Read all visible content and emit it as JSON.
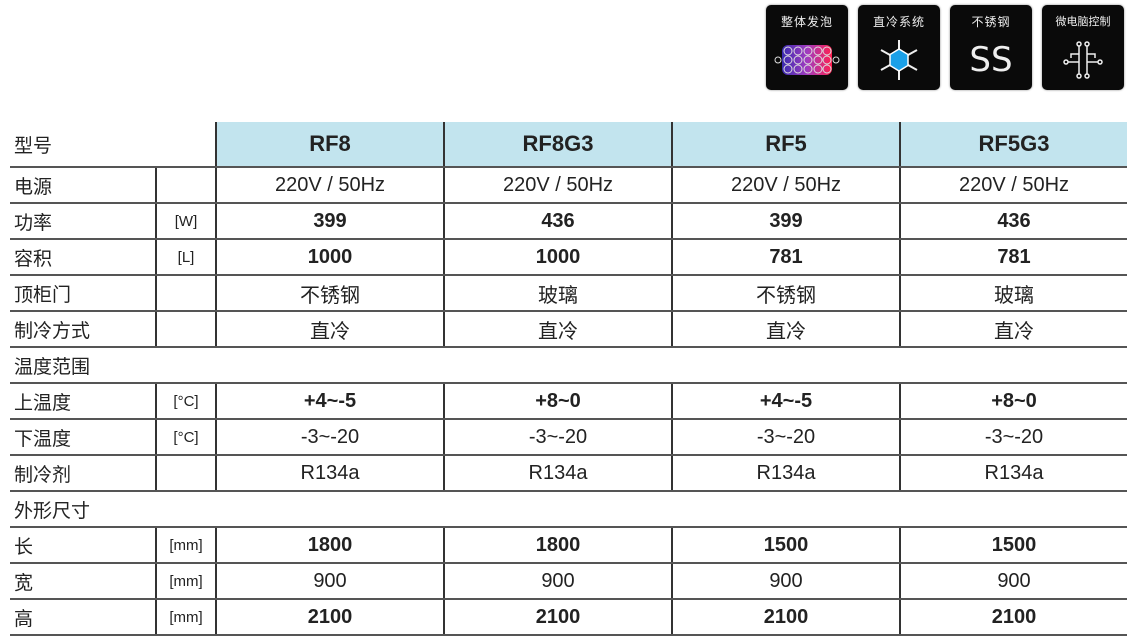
{
  "badges": [
    {
      "label": "整体发泡",
      "icon": "foam-bubbles-icon"
    },
    {
      "label": "直冷系统",
      "icon": "snowflake-icon"
    },
    {
      "label": "不锈钢",
      "icon": "stainless-steel-icon",
      "symbol": "SS"
    },
    {
      "label": "微电脑控制",
      "icon": "circuit-icon"
    }
  ],
  "table": {
    "header": {
      "label": "型号",
      "models": [
        "RF8",
        "RF8G3",
        "RF5",
        "RF5G3"
      ]
    },
    "rows": [
      {
        "label": "电源",
        "unit": "",
        "values": [
          "220V / 50Hz",
          "220V / 50Hz",
          "220V / 50Hz",
          "220V / 50Hz"
        ]
      },
      {
        "label": "功率",
        "unit": "[W]",
        "values": [
          "399",
          "436",
          "399",
          "436"
        ]
      },
      {
        "label": "容积",
        "unit": "[L]",
        "values": [
          "1000",
          "1000",
          "781",
          "781"
        ]
      },
      {
        "label": "顶柜门",
        "unit": "",
        "values": [
          "不锈钢",
          "玻璃",
          "不锈钢",
          "玻璃"
        ]
      },
      {
        "label": "制冷方式",
        "unit": "",
        "values": [
          "直冷",
          "直冷",
          "直冷",
          "直冷"
        ]
      },
      {
        "section": "温度范围"
      },
      {
        "label": "上温度",
        "unit": "[°C]",
        "values": [
          "+4~-5",
          "+8~0",
          "+4~-5",
          "+8~0"
        ]
      },
      {
        "label": "下温度",
        "unit": "[°C]",
        "values": [
          "-3~-20",
          "-3~-20",
          "-3~-20",
          "-3~-20"
        ]
      },
      {
        "label": "制冷剂",
        "unit": "",
        "values": [
          "R134a",
          "R134a",
          "R134a",
          "R134a"
        ]
      },
      {
        "section": "外形尺寸"
      },
      {
        "label": "长",
        "unit": "[mm]",
        "values": [
          "1800",
          "1800",
          "1500",
          "1500"
        ]
      },
      {
        "label": "宽",
        "unit": "[mm]",
        "values": [
          "900",
          "900",
          "900",
          "900"
        ]
      },
      {
        "label": "高",
        "unit": "[mm]",
        "values": [
          "2100",
          "2100",
          "2100",
          "2100"
        ]
      }
    ]
  }
}
